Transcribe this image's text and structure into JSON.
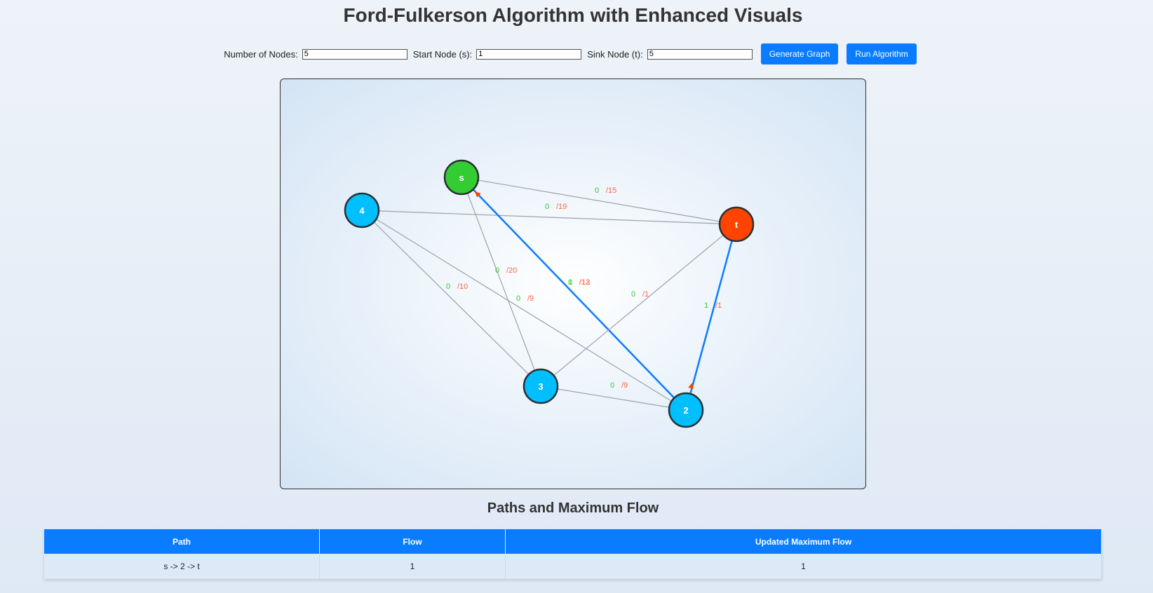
{
  "page": {
    "title": "Ford-Fulkerson Algorithm with Enhanced Visuals"
  },
  "controls": {
    "nodes_label": "Number of Nodes:",
    "nodes_value": "5",
    "start_label": "Start Node (s):",
    "start_value": "1",
    "sink_label": "Sink Node (t):",
    "sink_value": "5",
    "generate_button": "Generate Graph",
    "run_button": "Run Algorithm"
  },
  "graph": {
    "colors": {
      "source": "#33cc33",
      "sink": "#ff4400",
      "node": "#00bfff",
      "edge": "#9aa3ab",
      "path_edge": "#0a7cff",
      "flow_text": "#33cc33",
      "capacity_text": "#ff6644",
      "arrow": "#ff4400"
    },
    "nodes": [
      {
        "id": "s",
        "label": "s",
        "role": "source"
      },
      {
        "id": "4",
        "label": "4",
        "role": "node"
      },
      {
        "id": "t",
        "label": "t",
        "role": "sink"
      },
      {
        "id": "3",
        "label": "3",
        "role": "node"
      },
      {
        "id": "2",
        "label": "2",
        "role": "node"
      }
    ],
    "edges": [
      {
        "from": "s",
        "to": "t",
        "flow": "0",
        "capacity": "/15",
        "on_path": false
      },
      {
        "from": "4",
        "to": "t",
        "flow": "0",
        "capacity": "/19",
        "on_path": false
      },
      {
        "from": "s",
        "to": "3",
        "flow": "0",
        "capacity": "/20",
        "on_path": false
      },
      {
        "from": "4",
        "to": "3",
        "flow": "0",
        "capacity": "/10",
        "on_path": false
      },
      {
        "from": "4",
        "to": "2",
        "flow": "0",
        "capacity": "/9",
        "on_path": false
      },
      {
        "from": "s",
        "to": "2",
        "flow": "0",
        "capacity": "/13",
        "on_path": false
      },
      {
        "from": "s",
        "to": "2",
        "flow": "1",
        "capacity": "/12",
        "on_path": true
      },
      {
        "from": "3",
        "to": "t",
        "flow": "0",
        "capacity": "/1",
        "on_path": false
      },
      {
        "from": "2",
        "to": "t",
        "flow": "1",
        "capacity": "/1",
        "on_path": true
      },
      {
        "from": "3",
        "to": "2",
        "flow": "0",
        "capacity": "/9",
        "on_path": false
      }
    ]
  },
  "results": {
    "heading": "Paths and Maximum Flow",
    "columns": [
      "Path",
      "Flow",
      "Updated Maximum Flow"
    ],
    "rows": [
      {
        "path": "s -> 2 -> t",
        "flow": "1",
        "max_flow": "1"
      }
    ]
  }
}
